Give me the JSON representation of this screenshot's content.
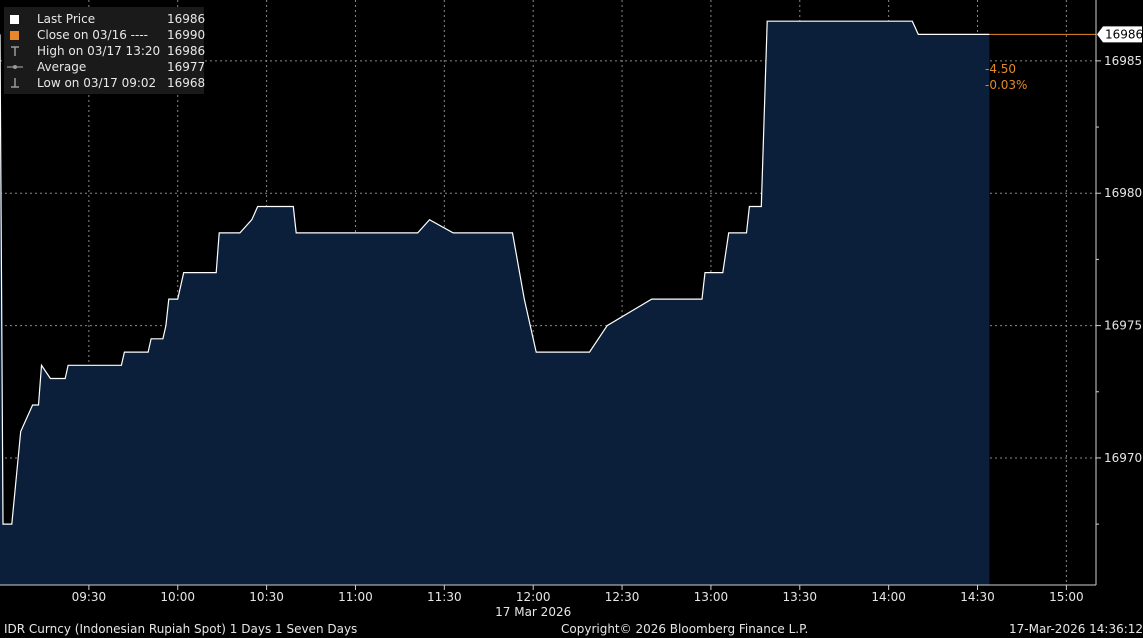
{
  "chart_data": {
    "type": "area",
    "title": "",
    "x_date_label": "17 Mar 2026",
    "x_tick_labels": [
      "09:30",
      "10:00",
      "10:30",
      "11:00",
      "11:30",
      "12:00",
      "12:30",
      "13:00",
      "13:30",
      "14:00",
      "14:30",
      "15:00"
    ],
    "y_tick_labels": [
      "16970",
      "16975",
      "16980",
      "16985"
    ],
    "ylim": [
      16965.2,
      16987.3
    ],
    "xlim": [
      "09:00",
      "15:10"
    ],
    "grid": true,
    "colors": {
      "line": "#ffffff",
      "fill": "#0b1f3a",
      "close_line": "#e8862b",
      "grid": "#888888"
    },
    "series": [
      {
        "name": "Last Price",
        "points": [
          [
            "09:00",
            16986
          ],
          [
            "09:01",
            16967.5
          ],
          [
            "09:04",
            16967.5
          ],
          [
            "09:07",
            16971
          ],
          [
            "09:11",
            16972
          ],
          [
            "09:13",
            16972
          ],
          [
            "09:14",
            16973.5
          ],
          [
            "09:17",
            16973
          ],
          [
            "09:22",
            16973
          ],
          [
            "09:23",
            16973.5
          ],
          [
            "09:41",
            16973.5
          ],
          [
            "09:42",
            16974
          ],
          [
            "09:50",
            16974
          ],
          [
            "09:51",
            16974.5
          ],
          [
            "09:55",
            16974.5
          ],
          [
            "09:56",
            16975
          ],
          [
            "09:57",
            16976
          ],
          [
            "10:00",
            16976
          ],
          [
            "10:02",
            16977
          ],
          [
            "10:13",
            16977
          ],
          [
            "10:14",
            16978.5
          ],
          [
            "10:21",
            16978.5
          ],
          [
            "10:25",
            16979
          ],
          [
            "10:27",
            16979.5
          ],
          [
            "10:39",
            16979.5
          ],
          [
            "10:40",
            16978.5
          ],
          [
            "11:21",
            16978.5
          ],
          [
            "11:25",
            16979
          ],
          [
            "11:33",
            16978.5
          ],
          [
            "11:53",
            16978.5
          ],
          [
            "11:57",
            16976
          ],
          [
            "12:01",
            16974
          ],
          [
            "12:19",
            16974
          ],
          [
            "12:25",
            16975
          ],
          [
            "12:40",
            16976
          ],
          [
            "12:57",
            16976
          ],
          [
            "12:58",
            16977
          ],
          [
            "13:04",
            16977
          ],
          [
            "13:06",
            16978.5
          ],
          [
            "13:12",
            16978.5
          ],
          [
            "13:13",
            16979.5
          ],
          [
            "13:17",
            16979.5
          ],
          [
            "13:19",
            16986.5
          ],
          [
            "14:08",
            16986.5
          ],
          [
            "14:10",
            16986
          ],
          [
            "14:34",
            16986
          ]
        ]
      },
      {
        "name": "Close on 03/16",
        "value": 16990
      }
    ]
  },
  "legend": [
    {
      "label": "Last Price",
      "value": "16986",
      "key": "square",
      "color": "#ffffff"
    },
    {
      "label": "Close on 03/16 ----",
      "value": "16990",
      "key": "square",
      "color": "#e8862b"
    },
    {
      "label": "High on 03/17 13:20",
      "value": "16986",
      "key": "high-marker",
      "color": "#9a9a9a"
    },
    {
      "label": "Average",
      "value": "16977",
      "key": "average-marker",
      "color": "#9a9a9a"
    },
    {
      "label": "Low on 03/17 09:02",
      "value": "16968",
      "key": "low-marker",
      "color": "#9a9a9a"
    }
  ],
  "last_price_tag": "16986",
  "change": {
    "absolute": "-4.50",
    "percent": "-0.03%"
  },
  "footer": {
    "security": "IDR Curncy (Indonesian Rupiah Spot) 1 Days 1 Seven Days",
    "copyright": "Copyright© 2026 Bloomberg Finance L.P.",
    "timestamp": "17-Mar-2026 14:36:12"
  }
}
